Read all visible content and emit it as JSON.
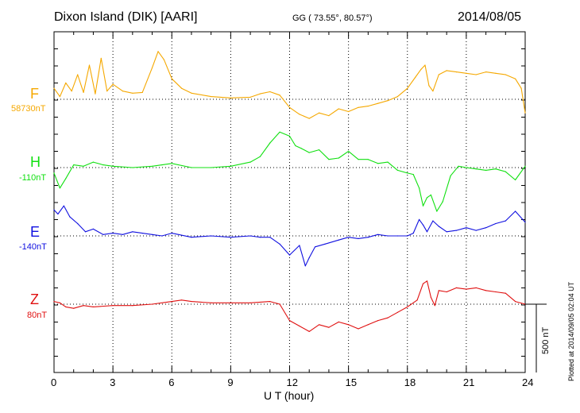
{
  "header": {
    "station": "Dixon Island (DIK)  [AARI]",
    "coords": "GG ( 73.55°,  80.57°)",
    "date": "2014/08/05"
  },
  "stamp": "Plotted at 2014/09/05 02:04 UT",
  "scale_label": "500 nT",
  "colors": {
    "F": "#f5a800",
    "H": "#10e010",
    "E": "#1010e0",
    "Z": "#e01010"
  },
  "chart_data": {
    "type": "line",
    "title": "Dixon Island (DIK)  [AARI]",
    "xlabel": "U T (hour)",
    "ylabel": "",
    "xlim": [
      0,
      24
    ],
    "x_ticks": [
      "0",
      "3",
      "6",
      "9",
      "12",
      "15",
      "18",
      "21",
      "24"
    ],
    "scale_bar_nT": 500,
    "series": [
      {
        "name": "F",
        "baseline_label": "58730nT",
        "baseline_nT": 58730,
        "color": "#f5a800",
        "x": [
          0,
          0.3,
          0.6,
          0.9,
          1.2,
          1.5,
          1.8,
          2.1,
          2.4,
          2.7,
          3.0,
          3.5,
          4.0,
          4.5,
          5.0,
          5.3,
          5.6,
          6.0,
          6.5,
          7.0,
          8.0,
          9.0,
          10.0,
          10.5,
          11.0,
          11.5,
          12.0,
          12.5,
          13.0,
          13.5,
          14.0,
          14.5,
          15.0,
          15.5,
          16.0,
          16.5,
          17.0,
          17.5,
          18.0,
          18.4,
          18.7,
          18.9,
          19.1,
          19.3,
          19.6,
          20.0,
          20.5,
          21.0,
          21.5,
          22.0,
          22.5,
          23.0,
          23.5,
          23.8,
          24.0
        ],
        "y": [
          80,
          20,
          120,
          60,
          180,
          50,
          250,
          40,
          300,
          60,
          110,
          60,
          45,
          50,
          230,
          350,
          290,
          150,
          80,
          45,
          20,
          10,
          15,
          40,
          55,
          30,
          -60,
          -110,
          -140,
          -100,
          -120,
          -70,
          -90,
          -60,
          -50,
          -30,
          -10,
          20,
          80,
          160,
          220,
          250,
          100,
          60,
          180,
          210,
          200,
          190,
          180,
          200,
          190,
          180,
          150,
          80,
          -100
        ]
      },
      {
        "name": "H",
        "baseline_label": "-110nT",
        "baseline_nT": -110,
        "color": "#10e010",
        "x": [
          0,
          0.3,
          0.6,
          1.0,
          1.5,
          2.0,
          2.5,
          3.0,
          4.0,
          5.0,
          5.5,
          6.0,
          7.0,
          8.0,
          9.0,
          10.0,
          10.5,
          11.0,
          11.5,
          12.0,
          12.3,
          12.6,
          13.0,
          13.5,
          14.0,
          14.5,
          15.0,
          15.5,
          16.0,
          16.5,
          17.0,
          17.5,
          18.0,
          18.3,
          18.6,
          18.8,
          19.0,
          19.2,
          19.5,
          19.8,
          20.2,
          20.6,
          21.0,
          21.5,
          22.0,
          22.5,
          23.0,
          23.5,
          24.0
        ],
        "y": [
          -40,
          -150,
          -80,
          20,
          10,
          40,
          20,
          10,
          0,
          10,
          20,
          30,
          0,
          0,
          10,
          40,
          80,
          180,
          260,
          230,
          160,
          140,
          110,
          130,
          60,
          70,
          120,
          60,
          60,
          30,
          40,
          -20,
          -40,
          -50,
          -150,
          -280,
          -220,
          -200,
          -320,
          -250,
          -60,
          10,
          0,
          -10,
          -20,
          -10,
          -30,
          -90,
          10
        ]
      },
      {
        "name": "E",
        "baseline_label": "-140nT",
        "baseline_nT": -140,
        "color": "#1010e0",
        "x": [
          0,
          0.2,
          0.5,
          0.8,
          1.2,
          1.6,
          2.0,
          2.5,
          3.0,
          3.5,
          4.0,
          4.5,
          5.0,
          5.5,
          6.0,
          7.0,
          8.0,
          9.0,
          10.0,
          10.5,
          11.0,
          11.5,
          12.0,
          12.5,
          12.8,
          13.0,
          13.3,
          13.8,
          14.5,
          15.0,
          15.5,
          16.0,
          16.5,
          17.0,
          17.5,
          18.0,
          18.3,
          18.6,
          18.8,
          19.0,
          19.3,
          19.6,
          20.0,
          20.5,
          21.0,
          21.5,
          22.0,
          22.5,
          23.0,
          23.5,
          24.0
        ],
        "y": [
          190,
          160,
          220,
          140,
          90,
          30,
          50,
          10,
          20,
          10,
          30,
          20,
          10,
          0,
          20,
          -10,
          0,
          -10,
          0,
          -10,
          -10,
          -60,
          -140,
          -70,
          -220,
          -160,
          -80,
          -60,
          -30,
          -10,
          -20,
          -10,
          10,
          0,
          0,
          0,
          20,
          120,
          80,
          30,
          110,
          70,
          30,
          40,
          60,
          40,
          60,
          90,
          110,
          180,
          100
        ]
      },
      {
        "name": "Z",
        "baseline_label": "80nT",
        "baseline_nT": 80,
        "color": "#e01010",
        "x": [
          0,
          0.3,
          0.6,
          1.0,
          1.5,
          2.0,
          3.0,
          4.0,
          5.0,
          6.0,
          6.5,
          7.0,
          8.0,
          9.0,
          10.0,
          11.0,
          11.5,
          12.0,
          12.5,
          13.0,
          13.5,
          14.0,
          14.5,
          15.0,
          15.5,
          16.0,
          16.5,
          17.0,
          17.5,
          18.0,
          18.5,
          18.8,
          19.0,
          19.2,
          19.4,
          19.6,
          20.0,
          20.5,
          21.0,
          21.5,
          22.0,
          22.5,
          23.0,
          23.5,
          24.0
        ],
        "y": [
          20,
          10,
          -20,
          -30,
          -10,
          -20,
          -10,
          -10,
          0,
          20,
          30,
          20,
          10,
          10,
          10,
          20,
          0,
          -120,
          -160,
          -200,
          -150,
          -170,
          -130,
          -150,
          -180,
          -150,
          -120,
          -100,
          -60,
          -20,
          30,
          150,
          170,
          50,
          -10,
          100,
          90,
          120,
          110,
          120,
          100,
          90,
          80,
          20,
          0
        ]
      }
    ]
  }
}
